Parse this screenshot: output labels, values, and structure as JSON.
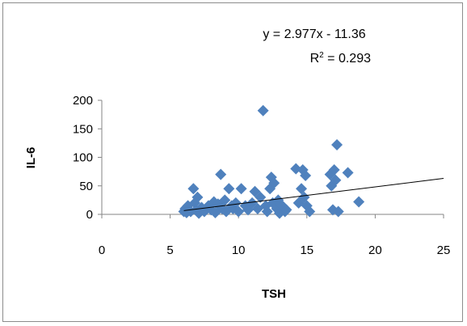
{
  "chart_data": {
    "type": "scatter",
    "title": "",
    "xlabel": "TSH",
    "ylabel": "IL-6",
    "xlim": [
      0,
      25
    ],
    "ylim": [
      0,
      200
    ],
    "xticks": [
      "0",
      "5",
      "10",
      "15",
      "20",
      "25"
    ],
    "yticks": [
      "0",
      "50",
      "100",
      "150",
      "200"
    ],
    "grid": false,
    "legend": "none",
    "marker": "diamond",
    "marker_color": "#4f81bd",
    "trendline_color": "#000000",
    "annotation": {
      "equation": "y = 2.977x - 11.36",
      "r2_prefix": "R",
      "r2_sup": "2",
      "r2_suffix": " = 0.293"
    },
    "trendline": {
      "slope": 2.977,
      "intercept": -11.36,
      "x_range": [
        6,
        25
      ]
    },
    "series": [
      {
        "x": [
          6.0,
          6.1,
          6.2,
          6.3,
          6.5,
          6.7,
          6.8,
          6.9,
          7.0,
          7.1,
          7.3,
          7.5,
          7.8,
          8.0,
          8.2,
          8.3,
          8.5,
          8.7,
          8.8,
          9.0,
          9.1,
          9.3,
          9.5,
          9.6,
          9.8,
          10.0,
          10.2,
          10.5,
          10.7,
          11.0,
          11.2,
          11.4,
          11.6,
          11.8,
          12.0,
          12.1,
          12.3,
          12.4,
          12.5,
          12.6,
          12.8,
          12.9,
          13.0,
          13.2,
          13.4,
          13.5,
          14.2,
          14.4,
          14.6,
          14.7,
          14.8,
          14.9,
          15.0,
          15.2,
          16.7,
          16.8,
          16.9,
          17.0,
          17.1,
          17.2,
          17.3,
          18.0,
          18.8
        ],
        "y": [
          5,
          10,
          3,
          15,
          5,
          45,
          20,
          8,
          30,
          2,
          12,
          5,
          15,
          8,
          22,
          3,
          18,
          70,
          10,
          25,
          5,
          45,
          15,
          10,
          20,
          5,
          45,
          15,
          8,
          20,
          40,
          10,
          30,
          182,
          15,
          5,
          45,
          65,
          20,
          55,
          10,
          25,
          2,
          15,
          5,
          8,
          80,
          20,
          45,
          78,
          30,
          68,
          15,
          5,
          70,
          50,
          8,
          78,
          60,
          122,
          5,
          73,
          22
        ]
      }
    ]
  }
}
